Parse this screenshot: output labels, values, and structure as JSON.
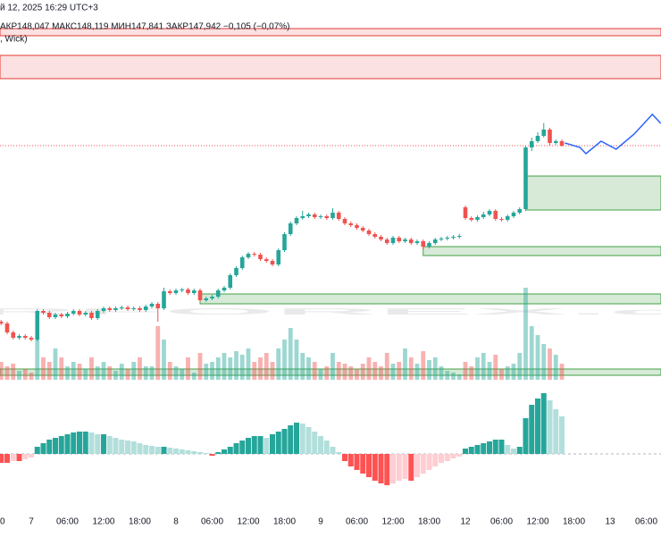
{
  "chart_data": {
    "type": "candlestick",
    "date_line": "й 12, 2025 16:29 UTC+3",
    "ohlc_line": "АКР148,047  МАКС148,119  МИН147,841  ЗАКР147,942  −0,105 (−0,07%)",
    "legend_line": ", Wick)",
    "watermark": "RFOREX.c",
    "up_color": "#26a69a",
    "down_color": "#ef5350",
    "xlim": [
      -5.185,
      104.444
    ],
    "xticks": [
      {
        "value": -6,
        "label": "0"
      },
      {
        "value": 0,
        "label": "7"
      },
      {
        "value": 6,
        "label": "06:00"
      },
      {
        "value": 12,
        "label": "12:00"
      },
      {
        "value": 18,
        "label": "18:00"
      },
      {
        "value": 24,
        "label": "8"
      },
      {
        "value": 30,
        "label": "06:00"
      },
      {
        "value": 36,
        "label": "12:00"
      },
      {
        "value": 42,
        "label": "18:00"
      },
      {
        "value": 48,
        "label": "9"
      },
      {
        "value": 54,
        "label": "06:00"
      },
      {
        "value": 60,
        "label": "12:00"
      },
      {
        "value": 66,
        "label": "18:00"
      },
      {
        "value": 72,
        "label": "12"
      },
      {
        "value": 78,
        "label": "06:00"
      },
      {
        "value": 84,
        "label": "12:00"
      },
      {
        "value": 90,
        "label": "18:00"
      },
      {
        "value": 96,
        "label": "13"
      },
      {
        "value": 102,
        "label": "06:00"
      }
    ],
    "ylim": [
      146.073,
      149.083
    ],
    "volume_lim": [
      0,
      14000
    ],
    "histogram_lim": [
      -82,
      78
    ],
    "x": [
      -5,
      -4,
      -3,
      -2,
      -1,
      0,
      1,
      2,
      3,
      4,
      5,
      6,
      7,
      8,
      9,
      10,
      11,
      12,
      13,
      14,
      15,
      16,
      17,
      18,
      19,
      20,
      21,
      22,
      23,
      24,
      25,
      26,
      27,
      28,
      29,
      30,
      31,
      32,
      33,
      34,
      35,
      36,
      37,
      38,
      39,
      40,
      41,
      42,
      43,
      44,
      45,
      46,
      47,
      48,
      49,
      50,
      51,
      52,
      53,
      54,
      55,
      56,
      57,
      58,
      59,
      60,
      61,
      62,
      63,
      64,
      65,
      66,
      67,
      68,
      69,
      70,
      71,
      72,
      73,
      74,
      75,
      76,
      77,
      78,
      79,
      80,
      81,
      82,
      83,
      84,
      85,
      86,
      87,
      88
    ],
    "candles": [
      [
        146.563,
        146.577,
        146.535,
        146.549
      ],
      [
        146.549,
        146.563,
        146.465,
        146.479
      ],
      [
        146.479,
        146.493,
        146.423,
        146.437
      ],
      [
        146.437,
        146.465,
        146.423,
        146.451
      ],
      [
        146.451,
        146.465,
        146.423,
        146.437
      ],
      [
        146.437,
        146.451,
        146.409,
        146.423
      ],
      [
        146.423,
        146.661,
        146.409,
        146.647
      ],
      [
        146.647,
        146.661,
        146.619,
        146.633
      ],
      [
        146.633,
        146.647,
        146.584,
        146.598
      ],
      [
        146.598,
        146.633,
        146.584,
        146.619
      ],
      [
        146.619,
        146.633,
        146.591,
        146.605
      ],
      [
        146.605,
        146.64,
        146.591,
        146.626
      ],
      [
        146.626,
        146.661,
        146.612,
        146.647
      ],
      [
        146.647,
        146.661,
        146.605,
        146.619
      ],
      [
        146.619,
        146.647,
        146.605,
        146.633
      ],
      [
        146.633,
        146.647,
        146.577,
        146.591
      ],
      [
        146.591,
        146.661,
        146.577,
        146.647
      ],
      [
        146.647,
        146.682,
        146.633,
        146.668
      ],
      [
        146.668,
        146.682,
        146.64,
        146.654
      ],
      [
        146.654,
        146.682,
        146.64,
        146.668
      ],
      [
        146.668,
        146.689,
        146.654,
        146.675
      ],
      [
        146.675,
        146.689,
        146.647,
        146.661
      ],
      [
        146.661,
        146.682,
        146.647,
        146.668
      ],
      [
        146.668,
        146.682,
        146.64,
        146.654
      ],
      [
        146.654,
        146.696,
        146.64,
        146.682
      ],
      [
        146.682,
        146.717,
        146.668,
        146.703
      ],
      [
        146.703,
        146.717,
        146.563,
        146.668
      ],
      [
        146.668,
        146.829,
        146.654,
        146.801
      ],
      [
        146.801,
        146.815,
        146.773,
        146.787
      ],
      [
        146.787,
        146.822,
        146.773,
        146.808
      ],
      [
        146.808,
        146.829,
        146.794,
        146.815
      ],
      [
        146.815,
        146.829,
        146.773,
        146.787
      ],
      [
        146.787,
        146.822,
        146.773,
        146.808
      ],
      [
        146.808,
        146.822,
        146.717,
        146.731
      ],
      [
        146.731,
        146.759,
        146.717,
        146.745
      ],
      [
        146.745,
        146.773,
        146.731,
        146.759
      ],
      [
        146.759,
        146.822,
        146.745,
        146.808
      ],
      [
        146.808,
        146.843,
        146.794,
        146.829
      ],
      [
        146.829,
        146.941,
        146.815,
        146.927
      ],
      [
        146.927,
        146.997,
        146.913,
        146.983
      ],
      [
        146.983,
        147.081,
        146.969,
        147.067
      ],
      [
        147.067,
        147.109,
        147.053,
        147.095
      ],
      [
        147.095,
        147.109,
        147.074,
        147.088
      ],
      [
        147.088,
        147.102,
        147.039,
        147.053
      ],
      [
        147.053,
        147.067,
        147.025,
        147.039
      ],
      [
        147.039,
        147.053,
        146.997,
        147.011
      ],
      [
        147.011,
        147.137,
        146.997,
        147.123
      ],
      [
        147.123,
        147.263,
        147.109,
        147.249
      ],
      [
        147.249,
        147.347,
        147.235,
        147.333
      ],
      [
        147.333,
        147.389,
        147.319,
        147.375
      ],
      [
        147.375,
        147.431,
        147.361,
        147.389
      ],
      [
        147.389,
        147.417,
        147.375,
        147.403
      ],
      [
        147.403,
        147.417,
        147.368,
        147.382
      ],
      [
        147.382,
        147.403,
        147.368,
        147.389
      ],
      [
        147.389,
        147.403,
        147.361,
        147.375
      ],
      [
        147.375,
        147.452,
        147.361,
        147.417
      ],
      [
        147.417,
        147.431,
        147.354,
        147.368
      ],
      [
        147.368,
        147.382,
        147.319,
        147.333
      ],
      [
        147.333,
        147.347,
        147.305,
        147.319
      ],
      [
        147.319,
        147.333,
        147.284,
        147.298
      ],
      [
        147.298,
        147.312,
        147.263,
        147.277
      ],
      [
        147.277,
        147.291,
        147.235,
        147.249
      ],
      [
        147.249,
        147.263,
        147.214,
        147.228
      ],
      [
        147.228,
        147.242,
        147.193,
        147.207
      ],
      [
        147.207,
        147.221,
        147.165,
        147.179
      ],
      [
        147.179,
        147.235,
        147.165,
        147.221
      ],
      [
        147.221,
        147.235,
        147.179,
        147.193
      ],
      [
        147.193,
        147.221,
        147.179,
        147.207
      ],
      [
        147.207,
        147.221,
        147.165,
        147.179
      ],
      [
        147.179,
        147.207,
        147.165,
        147.193
      ],
      [
        147.193,
        147.207,
        147.13,
        147.151
      ],
      [
        147.151,
        147.193,
        147.137,
        147.179
      ],
      [
        147.179,
        147.221,
        147.165,
        147.207
      ],
      [
        147.207,
        147.228,
        147.193,
        147.214
      ],
      [
        147.214,
        147.235,
        147.2,
        147.221
      ],
      [
        147.221,
        147.242,
        147.207,
        147.228
      ],
      [
        147.228,
        147.249,
        147.214,
        147.235
      ],
      [
        147.459,
        147.473,
        147.361,
        147.375
      ],
      [
        147.375,
        147.389,
        147.347,
        147.361
      ],
      [
        147.361,
        147.396,
        147.347,
        147.382
      ],
      [
        147.382,
        147.424,
        147.368,
        147.403
      ],
      [
        147.403,
        147.445,
        147.389,
        147.431
      ],
      [
        147.431,
        147.445,
        147.354,
        147.368
      ],
      [
        147.368,
        147.382,
        147.347,
        147.361
      ],
      [
        147.361,
        147.403,
        147.347,
        147.389
      ],
      [
        147.389,
        147.431,
        147.375,
        147.417
      ],
      [
        147.417,
        147.459,
        147.403,
        147.445
      ],
      [
        147.445,
        147.942,
        147.431,
        147.928
      ],
      [
        147.928,
        148.005,
        147.9,
        147.977
      ],
      [
        147.977,
        148.047,
        147.963,
        148.019
      ],
      [
        148.019,
        148.119,
        148.005,
        148.068
      ],
      [
        148.068,
        148.082,
        147.942,
        147.963
      ],
      [
        147.963,
        147.991,
        147.949,
        147.977
      ],
      [
        147.977,
        147.991,
        147.935,
        147.942
      ]
    ],
    "volume": [
      2000,
      1500,
      1800,
      1000,
      1200,
      800,
      4500,
      2500,
      2000,
      3500,
      2500,
      1500,
      2000,
      1800,
      1200,
      2500,
      1500,
      2000,
      1500,
      1000,
      1800,
      1200,
      2000,
      2500,
      1500,
      1500,
      6000,
      4500,
      2000,
      1500,
      1200,
      2500,
      800,
      3000,
      1800,
      2000,
      2500,
      3000,
      2500,
      3200,
      2800,
      3500,
      2000,
      2500,
      3000,
      2000,
      3500,
      4500,
      5800,
      4500,
      3000,
      2500,
      2000,
      1200,
      1500,
      3000,
      2000,
      1800,
      1500,
      1200,
      1800,
      2500,
      2000,
      1500,
      3000,
      1800,
      2000,
      3500,
      2500,
      1800,
      3200,
      2200,
      2500,
      1500,
      1000,
      800,
      600,
      2000,
      1500,
      2500,
      3000,
      2000,
      2800,
      1200,
      1500,
      1800,
      3000,
      10300,
      6000,
      5000,
      4000,
      3500,
      2800,
      1800
    ],
    "histogram": [
      -10,
      -10,
      -8,
      -8,
      -6,
      -4,
      8,
      12,
      16,
      18,
      20,
      22,
      24,
      25,
      25,
      24,
      22,
      22,
      20,
      18,
      16,
      15,
      14,
      12,
      10,
      9,
      8,
      8,
      7,
      6,
      5,
      4,
      3,
      2,
      1,
      -2,
      2,
      5,
      8,
      12,
      15,
      18,
      20,
      20,
      18,
      22,
      25,
      28,
      32,
      35,
      34,
      30,
      25,
      20,
      15,
      8,
      2,
      -8,
      -14,
      -18,
      -22,
      -26,
      -30,
      -33,
      -35,
      -33,
      -30,
      -28,
      -30,
      -26,
      -22,
      -18,
      -14,
      -10,
      -8,
      -5,
      -3,
      6,
      8,
      10,
      12,
      14,
      16,
      16,
      10,
      6,
      8,
      40,
      55,
      62,
      68,
      60,
      50,
      42
    ],
    "zones": [
      {
        "top": 148.859,
        "bottom": 148.803,
        "color": "#e53935"
      },
      {
        "top": 148.649,
        "bottom": 148.467,
        "color": "#e53935"
      },
      {
        "top": 147.704,
        "bottom": 147.438,
        "x0": 82,
        "color": "#43a047"
      },
      {
        "top": 147.151,
        "bottom": 147.081,
        "x0": 65,
        "color": "#43a047"
      },
      {
        "top": 146.78,
        "bottom": 146.703,
        "x0": 28,
        "color": "#43a047"
      },
      {
        "top": 146.192,
        "bottom": 146.143,
        "color": "#43a047"
      }
    ],
    "forecast": {
      "color": "#2962ff",
      "x": [
        88.5,
        91,
        92,
        94.5,
        97,
        100,
        103,
        104.4
      ],
      "values": [
        147.963,
        147.928,
        147.879,
        147.977,
        147.914,
        148.033,
        148.187,
        148.117
      ]
    }
  }
}
